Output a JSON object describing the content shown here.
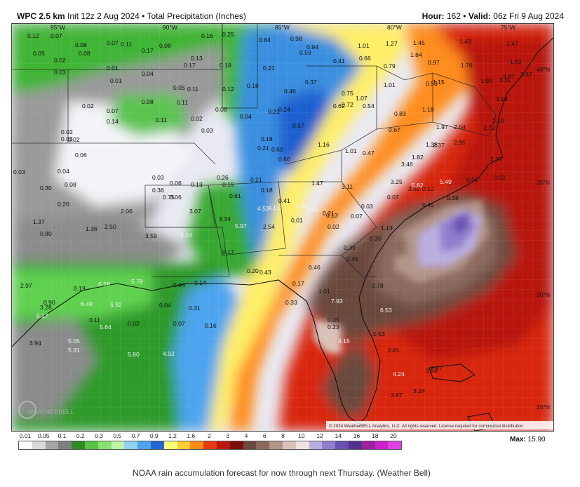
{
  "header": {
    "model": "WPC 2.5 km",
    "init": "Init 12z 2 Aug 2024",
    "separator": "•",
    "field": "Total Precipitation (Inches)",
    "hour_label": "Hour:",
    "hour_value": "162",
    "valid_label": "Valid:",
    "valid_value": "06z Fri 9 Aug 2024"
  },
  "map": {
    "longitude_labels": [
      "95°W",
      "90°W",
      "85°W",
      "80°W",
      "75°W"
    ],
    "latitude_labels": [
      "40°N",
      "35°N",
      "30°N",
      "25°N"
    ],
    "copyright": "© 2024 WeatherBELL Analytics, LLC. All rights reserved. License required for commercial distribution.",
    "watermark": "WEATHERBELL",
    "values": [
      "0.12",
      "0.07",
      "0.05",
      "0.08",
      "0.08",
      "0.02",
      "0.03",
      "0.07",
      "0.11",
      "0.17",
      "0.08",
      "0.16",
      "0.25",
      "0.84",
      "0.98",
      "1.01",
      "1.27",
      "1.45",
      "1.43",
      "1.47",
      "0.13",
      "0.17",
      "0.18",
      "0.21",
      "0.94",
      "0.59",
      "0.41",
      "0.66",
      "0.79",
      "1.64",
      "0.97",
      "1.76",
      "1.82",
      "0.01",
      "0.01",
      "0.04",
      "0.05",
      "0.11",
      "0.12",
      "0.18",
      "0.46",
      "0.37",
      "0.75",
      "1.07",
      "1.01",
      "0.53",
      "1.15",
      "1.00",
      "3.87",
      "3.67",
      "3.11",
      "3.18",
      "0.02",
      "0.08",
      "0.11",
      "0.07",
      "0.14",
      "0.11",
      "0.02",
      "0.03",
      "0.04",
      "0.08",
      "0.24",
      "0.21",
      "0.57",
      "0.62",
      "0.72",
      "0.54",
      "0.83",
      "1.97",
      "1.18",
      "2.04",
      "2.72",
      "2.19",
      "0.02",
      "0.03",
      "0.06",
      "0.04",
      "0.18",
      "0.21",
      "0.60",
      "0.60",
      "1.16",
      "1.01",
      "0.47",
      "0.67",
      "1.38",
      "1.82",
      "2.37",
      "2.95",
      "2.27",
      "0.02",
      "0.03",
      "0.06",
      "0.06",
      "0.26",
      "0.21",
      "0.18",
      "0.41",
      "1.47",
      "3.11",
      "3.25",
      "2.52",
      "3.46",
      "5.82",
      "5.49",
      "0.02",
      "0.02",
      "0.03",
      "0.08",
      "0.13",
      "0.15",
      "0.61",
      "4.53",
      "4.13",
      "6.89",
      "6.40",
      "0.02",
      "0.03",
      "0.07",
      "0.45",
      "0.12",
      "0.38",
      "0.30",
      "0.20",
      "0.36",
      "0.75",
      "2.06",
      "3.07",
      "3.34",
      "5.97",
      "2.54",
      "0.01",
      "0.13",
      "0.21",
      "0.07",
      "0.30",
      "1.13",
      "1.37",
      "1.36",
      "2.50",
      "3.59",
      "4.24",
      "0.17",
      "0.20",
      "0.43",
      "0.46",
      "0.39",
      "0.45",
      "0.80",
      "2.97",
      "5.78",
      "6.78",
      "0.19",
      "0.04",
      "0.14",
      "0.17",
      "1.01",
      "0.78",
      "0.90",
      "3.28",
      "6.49",
      "5.92",
      "0.04",
      "0.31",
      "0.16",
      "0.33",
      "7.93",
      "6.53",
      "5.17",
      "0.11",
      "0.02",
      "0.07",
      "0.05",
      "0.23",
      "0.53",
      "5.64",
      "3.94",
      "5.05",
      "5.31",
      "5.80",
      "4.92",
      "4.15",
      "2.81",
      "3.56",
      "2.97",
      "4.24",
      "3.24",
      "3.67"
    ]
  },
  "legend": {
    "ticks": [
      "0.01",
      "0.05",
      "0.1",
      "0.2",
      "0.3",
      "0.5",
      "0.7",
      "0.9",
      "1.2",
      "1.6",
      "2",
      "3",
      "4",
      "6",
      "8",
      "10",
      "12",
      "14",
      "16",
      "18",
      "20"
    ],
    "colors": [
      "#ffffff",
      "#d9d9d9",
      "#a6a6a6",
      "#7f7f7f",
      "#2e8b22",
      "#56c443",
      "#86e26e",
      "#bdf4a8",
      "#8fd3f0",
      "#4ea4ef",
      "#2565d8",
      "#ffff7a",
      "#ffcc33",
      "#ff8c1a",
      "#e63a12",
      "#b8180e",
      "#7a0e08",
      "#6b4a3e",
      "#8c6b5e",
      "#b39589",
      "#d9c2ba",
      "#ede3de",
      "#b9aee0",
      "#8f7fcc",
      "#6b4fb3",
      "#54318f",
      "#a020a0",
      "#cc22cc",
      "#e040e0"
    ],
    "max_label": "Max:",
    "max_value": "15.90"
  },
  "caption": "NOAA rain accumulation forecast for now through next Thursday. (Weather Bell)"
}
